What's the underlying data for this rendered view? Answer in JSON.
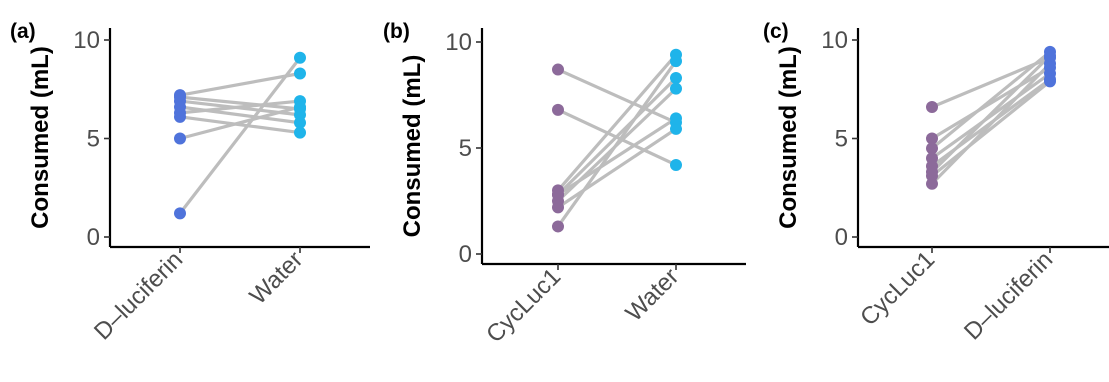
{
  "colors": {
    "purple": "#8c6a9a",
    "blue": "#4f73db",
    "cyan": "#1fb4ea",
    "line": "#bdbdbd"
  },
  "chart_data": [
    {
      "type": "line",
      "panel_label": "(a)",
      "ylabel": "Consumed (mL)",
      "categories": [
        "D–luciferin",
        "Water"
      ],
      "point_colors": [
        "blue",
        "cyan"
      ],
      "ylim": [
        0,
        10
      ],
      "yticks": [
        0,
        5,
        10
      ],
      "grid": false,
      "pairs": [
        [
          7.1,
          6.5
        ],
        [
          6.9,
          6.2
        ],
        [
          6.6,
          5.8
        ],
        [
          6.3,
          6.9
        ],
        [
          6.1,
          5.3
        ],
        [
          5.0,
          6.6
        ],
        [
          1.2,
          9.1
        ],
        [
          7.2,
          8.3
        ]
      ]
    },
    {
      "type": "line",
      "panel_label": "(b)",
      "ylabel": "Consumed (mL)",
      "categories": [
        "CycLuc1",
        "Water"
      ],
      "point_colors": [
        "purple",
        "cyan"
      ],
      "ylim": [
        0,
        10
      ],
      "yticks": [
        0,
        5,
        10
      ],
      "grid": false,
      "pairs": [
        [
          8.7,
          6.2
        ],
        [
          6.8,
          4.2
        ],
        [
          3.0,
          9.4
        ],
        [
          2.8,
          8.3
        ],
        [
          2.5,
          7.8
        ],
        [
          2.2,
          5.9
        ],
        [
          1.3,
          9.1
        ],
        [
          2.8,
          6.4
        ]
      ]
    },
    {
      "type": "line",
      "panel_label": "(c)",
      "ylabel": "Consumed (mL)",
      "categories": [
        "CycLuc1",
        "D–luciferin"
      ],
      "point_colors": [
        "purple",
        "blue"
      ],
      "ylim": [
        0,
        10
      ],
      "yticks": [
        0,
        5,
        10
      ],
      "grid": false,
      "pairs": [
        [
          6.6,
          9.1
        ],
        [
          5.0,
          8.6
        ],
        [
          4.5,
          9.4
        ],
        [
          4.0,
          8.3
        ],
        [
          3.6,
          8.0
        ],
        [
          3.1,
          7.9
        ],
        [
          2.7,
          8.8
        ],
        [
          3.3,
          9.2
        ]
      ]
    }
  ]
}
